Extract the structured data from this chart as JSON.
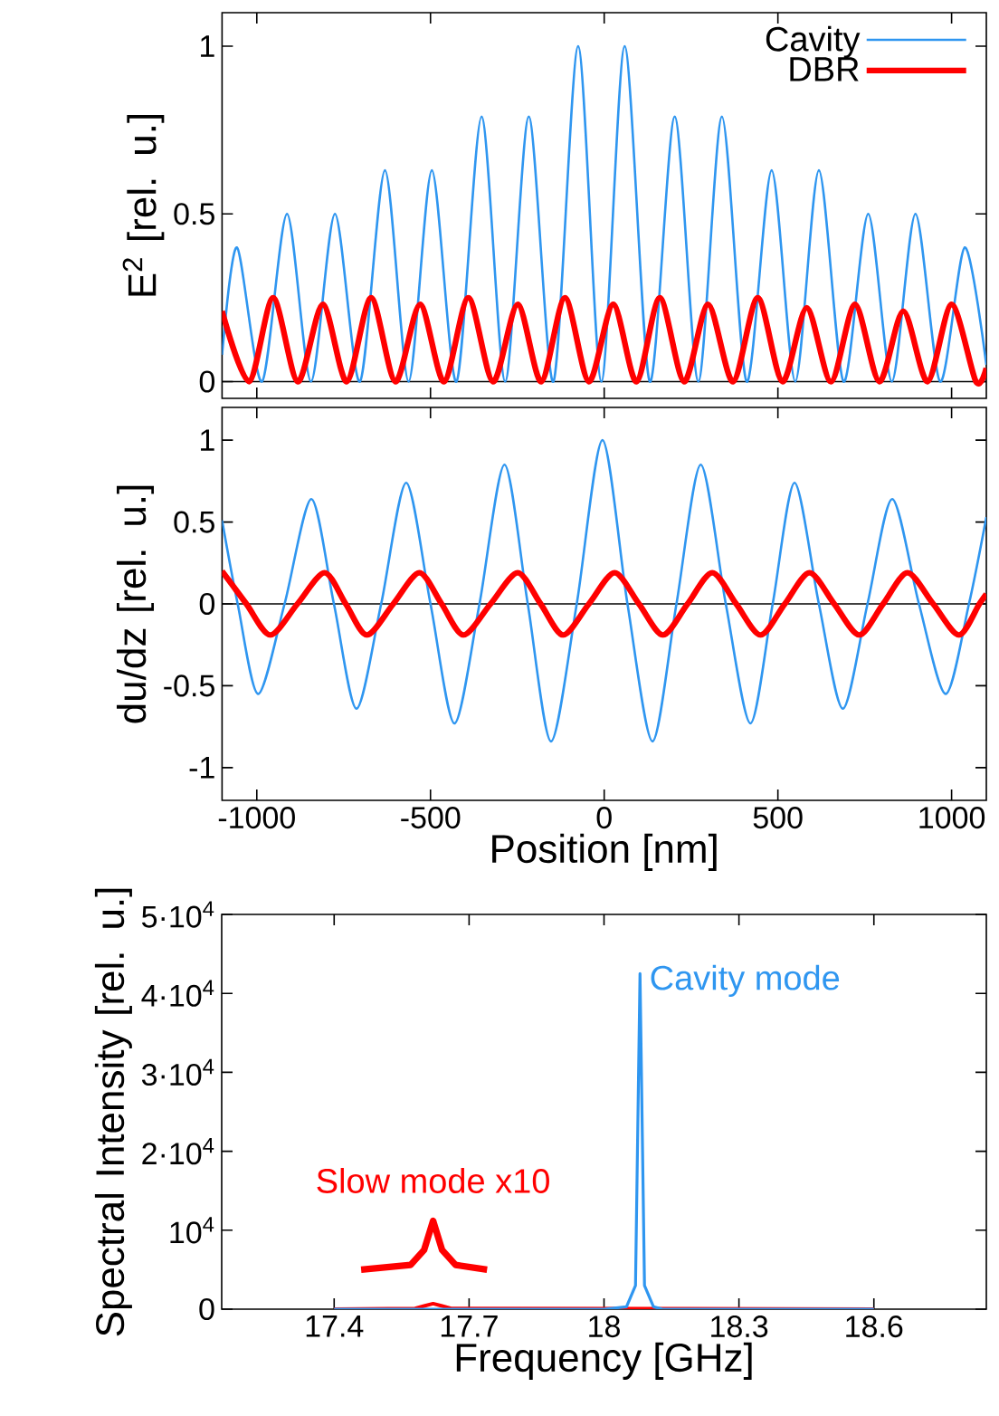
{
  "chart_data": [
    {
      "type": "line",
      "ylabel": "E$^{2}$ [rel. u.]",
      "xlim": [
        -1100,
        1100
      ],
      "ylim": [
        -0.05,
        1.1
      ],
      "xticks": [
        -1000,
        -500,
        0,
        500,
        1000
      ],
      "yticks": [
        0,
        0.5,
        1
      ],
      "tick_labels": "y",
      "legend": "top right",
      "marker": "none",
      "ref_lines": [
        {
          "axis": "y",
          "value": 0
        }
      ],
      "series": [
        {
          "name": "Cavity",
          "color": "#2f96f0",
          "x": [
            -1100,
            -1057,
            -985,
            -913,
            -844,
            -775,
            -703,
            -631,
            -563,
            -496,
            -425,
            -353,
            -285,
            -217,
            -146,
            -75,
            -8,
            59,
            131,
            203,
            271,
            339,
            410,
            482,
            550,
            618,
            689,
            760,
            828,
            896,
            967,
            1038,
            1100
          ],
          "values": [
            0.08,
            0.4,
            0,
            0.5,
            0,
            0.5,
            0,
            0.63,
            0,
            0.63,
            0,
            0.79,
            0,
            0.79,
            0,
            1,
            0,
            1,
            0,
            0.79,
            0,
            0.79,
            0,
            0.63,
            0,
            0.63,
            0,
            0.5,
            0,
            0.5,
            0,
            0.4,
            0.05
          ]
        },
        {
          "name": "DBR",
          "color": "#ff0000",
          "x": [
            -1100,
            -1022,
            -953,
            -882,
            -810,
            -741,
            -671,
            -601,
            -530,
            -461,
            -391,
            -320,
            -249,
            -181,
            -113,
            -44,
            26,
            93,
            160,
            230,
            299,
            371,
            442,
            513,
            583,
            653,
            722,
            792,
            861,
            931,
            1000,
            1070,
            1100
          ],
          "values": [
            0.21,
            0,
            0.25,
            0,
            0.23,
            0,
            0.25,
            0,
            0.23,
            0,
            0.25,
            0,
            0.23,
            0,
            0.25,
            0,
            0.23,
            0,
            0.25,
            0,
            0.23,
            0,
            0.25,
            0,
            0.22,
            0,
            0.23,
            0,
            0.21,
            0,
            0.23,
            0,
            0.04
          ]
        }
      ]
    },
    {
      "type": "line",
      "xlabel": "Position [nm]",
      "ylabel": "du/dz [rel. u.]",
      "xlim": [
        -1100,
        1100
      ],
      "ylim": [
        -1.2,
        1.2
      ],
      "xticks": [
        -1000,
        -500,
        0,
        500,
        1000
      ],
      "yticks": [
        -1,
        -0.5,
        0,
        0.5,
        1
      ],
      "marker": "none",
      "ref_lines": [
        {
          "axis": "y",
          "value": 0
        }
      ],
      "series": [
        {
          "color": "#2f96f0",
          "x": [
            -1100,
            -1055,
            -996,
            -920,
            -843,
            -778,
            -713,
            -642,
            -570,
            -500,
            -431,
            -359,
            -287,
            -220,
            -153,
            -79,
            -5,
            67,
            139,
            208,
            278,
            350,
            421,
            485,
            548,
            618,
            687,
            758,
            829,
            906,
            983,
            1050,
            1100
          ],
          "values": [
            0.51,
            0,
            -0.55,
            0,
            0.64,
            0,
            -0.64,
            0,
            0.74,
            0,
            -0.73,
            0,
            0.85,
            0,
            -0.84,
            0,
            1,
            0,
            -0.84,
            0,
            0.85,
            0,
            -0.73,
            0,
            0.74,
            0,
            -0.64,
            0,
            0.64,
            0,
            -0.55,
            0,
            0.53
          ]
        },
        {
          "color": "#ff0000",
          "x": [
            -1100,
            -1030,
            -961,
            -883,
            -805,
            -744,
            -683,
            -607,
            -532,
            -468,
            -405,
            -327,
            -249,
            -183,
            -118,
            -44,
            30,
            100,
            169,
            240,
            311,
            380,
            450,
            520,
            591,
            662,
            734,
            803,
            873,
            947,
            1021,
            1080,
            1100
          ],
          "values": [
            0.2,
            0,
            -0.19,
            0,
            0.19,
            0,
            -0.19,
            0,
            0.19,
            0,
            -0.19,
            0,
            0.19,
            0,
            -0.19,
            0,
            0.19,
            0,
            -0.19,
            0,
            0.19,
            0,
            -0.19,
            0,
            0.19,
            0,
            -0.19,
            0,
            0.19,
            0,
            -0.19,
            0,
            0.06
          ]
        }
      ]
    },
    {
      "type": "line",
      "xlabel": "Frequency [GHz]",
      "ylabel": "Spectral Intensity [rel. u.]",
      "xlim": [
        17.15,
        18.85
      ],
      "ylim": [
        0,
        50000
      ],
      "xticks": [
        17.4,
        17.7,
        18,
        18.3,
        18.6
      ],
      "yticks": [
        0,
        {
          "value": 10000,
          "label": "10$^{4}$"
        },
        {
          "value": 20000,
          "label": "2·10$^{4}$"
        },
        {
          "value": 30000,
          "label": "3·10$^{4}$"
        },
        {
          "value": 40000,
          "label": "4·10$^{4}$"
        },
        {
          "value": 50000,
          "label": "5·10$^{4}$"
        }
      ],
      "marker": "none",
      "series": [
        {
          "color": "#ff0000",
          "x": [
            17.4,
            17.58,
            17.6,
            17.62,
            17.64,
            17.66,
            18.6
          ],
          "values": [
            0,
            100,
            400,
            700,
            400,
            100,
            0
          ]
        },
        {
          "name": "Cavity mode",
          "color": "#2f96f0",
          "x": [
            17.4,
            18.0,
            18.05,
            18.07,
            18.08,
            18.09,
            18.11,
            18.13,
            18.6
          ],
          "values": [
            0,
            0,
            300,
            3000,
            42500,
            3000,
            300,
            0,
            0
          ]
        },
        {
          "name": "Slow mode x10",
          "color": "#ff0000",
          "x": [
            17.46,
            17.57,
            17.6,
            17.62,
            17.64,
            17.67,
            17.74
          ],
          "values": [
            5000,
            5600,
            7500,
            11200,
            7500,
            5600,
            5000
          ]
        }
      ]
    }
  ]
}
